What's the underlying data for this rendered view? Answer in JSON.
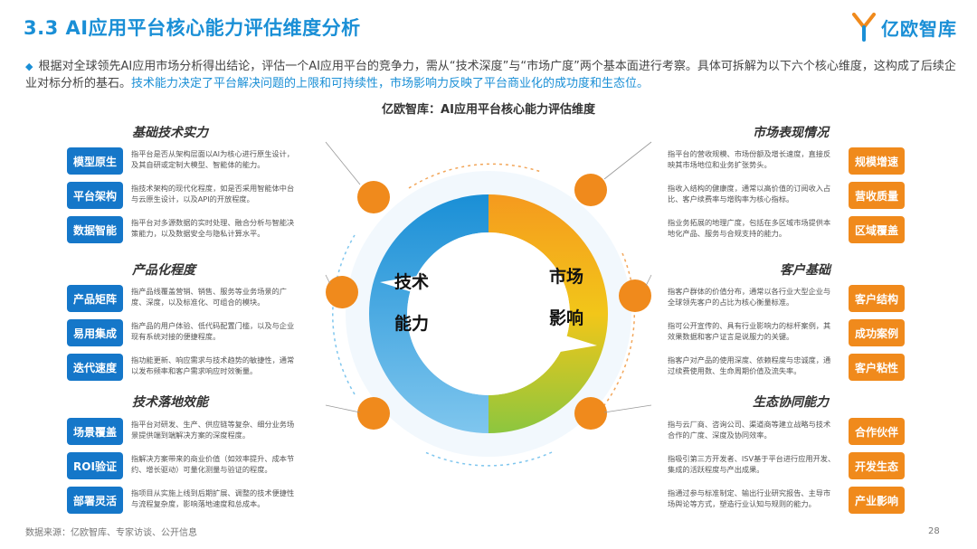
{
  "title": "3.3 AI应用平台核心能力评估维度分析",
  "logo": {
    "text": "亿欧智库"
  },
  "intro": {
    "bullet": "◆",
    "text": "根据对全球领先AI应用市场分析得出结论，评估一个AI应用平台的竞争力，需从“技术深度”与“市场广度”两个基本面进行考察。具体可拆解为以下六个核心维度，这构成了后续企业对标分析的基石。",
    "highlight": "技术能力决定了平台解决问题的上限和可持续性，市场影响力反映了平台商业化的成功度和生态位。"
  },
  "center_title": "亿欧智库：AI应用平台核心能力评估维度",
  "ring": {
    "left_top": "技术",
    "left_bottom": "能力",
    "right_top": "市场",
    "right_bottom": "影响"
  },
  "sections": {
    "tech_base": {
      "title": "基础技术实力",
      "items": [
        {
          "tag": "模型原生",
          "desc": "指平台是否从架构层面以AI为核心进行原生设计，及其自研或定制大模型、智能体的能力。"
        },
        {
          "tag": "平台架构",
          "desc": "指技术架构的现代化程度，如是否采用智能体中台与云原生设计，以及API的开放程度。"
        },
        {
          "tag": "数据智能",
          "desc": "指平台对多源数据的实时处理、融合分析与智能决策能力，以及数据安全与隐私计算水平。"
        }
      ]
    },
    "productization": {
      "title": "产品化程度",
      "items": [
        {
          "tag": "产品矩阵",
          "desc": "指产品线覆盖营销、销售、服务等业务场景的广度、深度，以及标准化、可组合的模块。"
        },
        {
          "tag": "易用集成",
          "desc": "指产品的用户体验、低代码配置门槛，以及与企业现有系统对接的便捷程度。"
        },
        {
          "tag": "迭代速度",
          "desc": "指功能更新、响应需求与技术趋势的敏捷性，通常以发布频率和客户需求响应时效衡量。"
        }
      ]
    },
    "tech_landing": {
      "title": "技术落地效能",
      "items": [
        {
          "tag": "场景覆盖",
          "desc": "指平台对研发、生产、供应链等复杂、细分业务场景提供端到端解决方案的深度程度。"
        },
        {
          "tag": "ROI验证",
          "desc": "指解决方案带来的商业价值（如效率提升、成本节约、增长驱动）可量化测量与验证的程度。"
        },
        {
          "tag": "部署灵活",
          "desc": "指项目从实施上线到后期扩展、调整的技术便捷性与流程复杂度，影响落地速度和总成本。"
        }
      ]
    },
    "market_perf": {
      "title": "市场表现情况",
      "items": [
        {
          "tag": "规模增速",
          "desc": "指平台的营收规模、市场份额及增长速度，直接反映其市场地位和业务扩张势头。"
        },
        {
          "tag": "营收质量",
          "desc": "指收入结构的健康度，通常以高价值的订阅收入占比、客户续费率与增购率为核心指标。"
        },
        {
          "tag": "区域覆盖",
          "desc": "指业务拓展的地理广度，包括在多区域市场提供本地化产品、服务与合规支持的能力。"
        }
      ]
    },
    "customer_base": {
      "title": "客户基础",
      "items": [
        {
          "tag": "客户结构",
          "desc": "指客户群体的价值分布，通常以各行业大型企业与全球领先客户的占比为核心衡量标准。"
        },
        {
          "tag": "成功案例",
          "desc": "指可公开宣传的、具有行业影响力的标杆案例，其效果数据和客户证言是说服力的关键。"
        },
        {
          "tag": "客户粘性",
          "desc": "指客户对产品的使用深度、依赖程度与忠诚度，通过续费使用数、生命周期价值及流失率。"
        }
      ]
    },
    "ecosystem": {
      "title": "生态协同能力",
      "items": [
        {
          "tag": "合作伙伴",
          "desc": "指与云厂商、咨询公司、渠道商等建立战略与技术合作的广度、深度及协同效率。"
        },
        {
          "tag": "开发生态",
          "desc": "指吸引第三方开发者、ISV基于平台进行应用开发、集成的活跃程度与产出成果。"
        },
        {
          "tag": "产业影响",
          "desc": "指通过参与标准制定、输出行业研究报告、主导市场舆论等方式，塑造行业认知与规则的能力。"
        }
      ]
    }
  },
  "footer": {
    "source": "数据来源：亿欧智库、专家访谈、公开信息",
    "page": "28"
  },
  "colors": {
    "accent_blue": "#1a8fd6",
    "tag_blue": "#1577c9",
    "tag_orange": "#f08a1c",
    "ring_green": "#9ccc2a"
  }
}
